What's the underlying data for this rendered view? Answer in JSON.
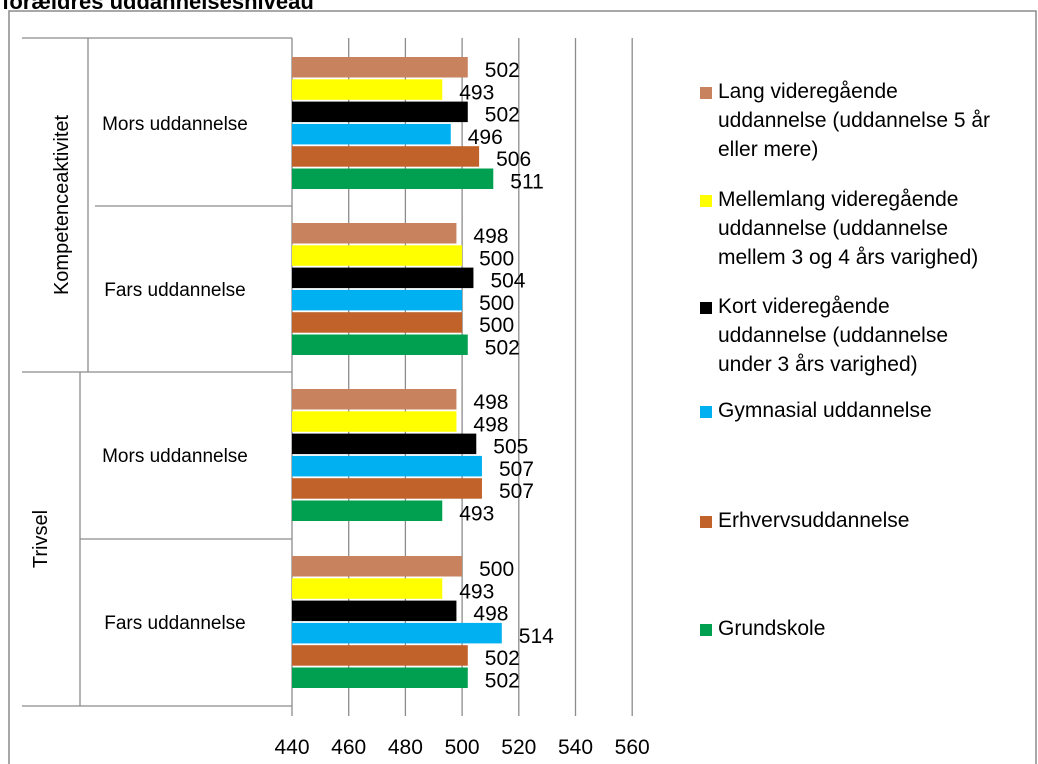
{
  "cut_title": "forældres uddannelsesniveau",
  "chart_data": {
    "type": "bar",
    "orientation": "horizontal",
    "xlim": [
      440,
      560
    ],
    "xticks": [
      440,
      460,
      480,
      500,
      520,
      540,
      560
    ],
    "grid": true,
    "legend_position": "right",
    "groups": [
      {
        "name": "Kompetenceaktivitet",
        "subgroups": [
          {
            "name": "Mors uddannelse",
            "values": [
              502,
              493,
              502,
              496,
              506,
              511
            ]
          },
          {
            "name": "Fars uddannelse",
            "values": [
              498,
              500,
              504,
              500,
              500,
              502
            ]
          }
        ]
      },
      {
        "name": "Trivsel",
        "subgroups": [
          {
            "name": "Mors uddannelse",
            "values": [
              498,
              498,
              505,
              507,
              507,
              493
            ]
          },
          {
            "name": "Fars uddannelse",
            "values": [
              500,
              493,
              498,
              514,
              502,
              502
            ]
          }
        ]
      }
    ],
    "series": [
      {
        "name": "Lang videregående uddannelse (uddannelse 5 år eller mere)",
        "legend_lines": [
          "Lang videregående",
          "uddannelse (uddannelse 5 år",
          "eller mere)"
        ],
        "color": "#c8825e"
      },
      {
        "name": "Mellemlang videregående uddannelse (uddannelse mellem 3 og 4 års varighed)",
        "legend_lines": [
          "Mellemlang videregående",
          "uddannelse (uddannelse",
          "mellem 3 og 4 års varighed)"
        ],
        "color": "#ffff00"
      },
      {
        "name": "Kort videregående uddannelse (uddannelse under 3 års varighed)",
        "legend_lines": [
          "Kort videregående",
          "uddannelse (uddannelse",
          "under 3 års varighed)"
        ],
        "color": "#000000"
      },
      {
        "name": "Gymnasial uddannelse",
        "legend_lines": [
          "Gymnasial uddannelse"
        ],
        "color": "#00b0f0"
      },
      {
        "name": "Erhvervsuddannelse",
        "legend_lines": [
          "Erhvervsuddannelse"
        ],
        "color": "#c0622a"
      },
      {
        "name": "Grundskole",
        "legend_lines": [
          "Grundskole"
        ],
        "color": "#00a050"
      }
    ]
  }
}
